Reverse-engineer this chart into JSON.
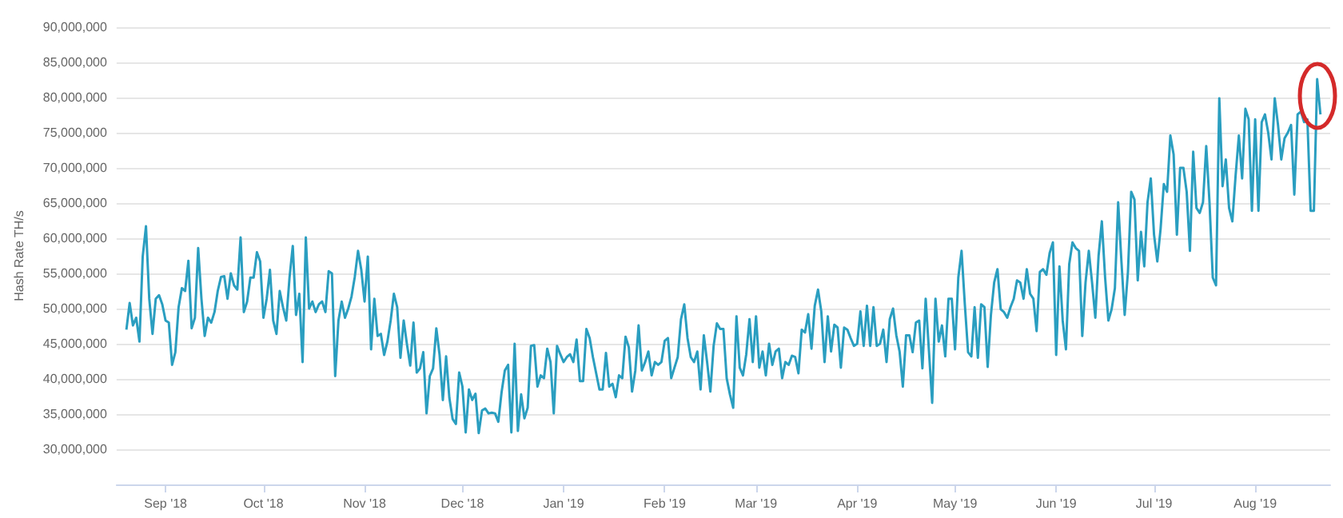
{
  "chart_data": {
    "type": "line",
    "ylabel": "Hash Rate TH/s",
    "color": "#2a9ec0",
    "marker": "none",
    "grid": "y",
    "xlim": [
      "2018-08-17",
      "2019-08-24"
    ],
    "xticks": [
      {
        "value": "2018-09-01",
        "label": "Sep '18"
      },
      {
        "value": "2018-10-01",
        "label": "Oct '18"
      },
      {
        "value": "2018-11-01",
        "label": "Nov '18"
      },
      {
        "value": "2018-12-01",
        "label": "Dec '18"
      },
      {
        "value": "2019-01-01",
        "label": "Jan '19"
      },
      {
        "value": "2019-02-01",
        "label": "Feb '19"
      },
      {
        "value": "2019-03-01",
        "label": "Mar '19"
      },
      {
        "value": "2019-04-01",
        "label": "Apr '19"
      },
      {
        "value": "2019-05-01",
        "label": "May '19"
      },
      {
        "value": "2019-06-01",
        "label": "Jun '19"
      },
      {
        "value": "2019-07-01",
        "label": "Jul '19"
      },
      {
        "value": "2019-08-01",
        "label": "Aug '19"
      }
    ],
    "ylim": [
      25000000,
      90000000
    ],
    "yticks": [
      {
        "value": 30000000,
        "label": "30,000,000"
      },
      {
        "value": 35000000,
        "label": "35,000,000"
      },
      {
        "value": 40000000,
        "label": "40,000,000"
      },
      {
        "value": 45000000,
        "label": "45,000,000"
      },
      {
        "value": 50000000,
        "label": "50,000,000"
      },
      {
        "value": 55000000,
        "label": "55,000,000"
      },
      {
        "value": 60000000,
        "label": "60,000,000"
      },
      {
        "value": 65000000,
        "label": "65,000,000"
      },
      {
        "value": 70000000,
        "label": "70,000,000"
      },
      {
        "value": 75000000,
        "label": "75,000,000"
      },
      {
        "value": 80000000,
        "label": "80,000,000"
      },
      {
        "value": 85000000,
        "label": "85,000,000"
      },
      {
        "value": 90000000,
        "label": "90,000,000"
      }
    ],
    "x": [
      "2018-08-20",
      "2018-08-21",
      "2018-08-22",
      "2018-08-23",
      "2018-08-24",
      "2018-08-25",
      "2018-08-26",
      "2018-08-27",
      "2018-08-28",
      "2018-08-29",
      "2018-08-30",
      "2018-08-31",
      "2018-09-01",
      "2018-09-02",
      "2018-09-03",
      "2018-09-04",
      "2018-09-05",
      "2018-09-06",
      "2018-09-07",
      "2018-09-08",
      "2018-09-09",
      "2018-09-10",
      "2018-09-11",
      "2018-09-12",
      "2018-09-13",
      "2018-09-14",
      "2018-09-15",
      "2018-09-16",
      "2018-09-17",
      "2018-09-18",
      "2018-09-19",
      "2018-09-20",
      "2018-09-21",
      "2018-09-22",
      "2018-09-23",
      "2018-09-24",
      "2018-09-25",
      "2018-09-26",
      "2018-09-27",
      "2018-09-28",
      "2018-09-29",
      "2018-09-30",
      "2018-10-01",
      "2018-10-02",
      "2018-10-03",
      "2018-10-04",
      "2018-10-05",
      "2018-10-06",
      "2018-10-07",
      "2018-10-08",
      "2018-10-09",
      "2018-10-10",
      "2018-10-11",
      "2018-10-12",
      "2018-10-13",
      "2018-10-14",
      "2018-10-15",
      "2018-10-16",
      "2018-10-17",
      "2018-10-18",
      "2018-10-19",
      "2018-10-20",
      "2018-10-21",
      "2018-10-22",
      "2018-10-23",
      "2018-10-24",
      "2018-10-25",
      "2018-10-26",
      "2018-10-27",
      "2018-10-28",
      "2018-10-29",
      "2018-10-30",
      "2018-10-31",
      "2018-11-01",
      "2018-11-02",
      "2018-11-03",
      "2018-11-04",
      "2018-11-05",
      "2018-11-06",
      "2018-11-07",
      "2018-11-08",
      "2018-11-09",
      "2018-11-10",
      "2018-11-11",
      "2018-11-12",
      "2018-11-13",
      "2018-11-14",
      "2018-11-15",
      "2018-11-16",
      "2018-11-17",
      "2018-11-18",
      "2018-11-19",
      "2018-11-20",
      "2018-11-21",
      "2018-11-22",
      "2018-11-23",
      "2018-11-24",
      "2018-11-25",
      "2018-11-26",
      "2018-11-27",
      "2018-11-28",
      "2018-11-29",
      "2018-11-30",
      "2018-12-01",
      "2018-12-02",
      "2018-12-03",
      "2018-12-04",
      "2018-12-05",
      "2018-12-06",
      "2018-12-07",
      "2018-12-08",
      "2018-12-09",
      "2018-12-10",
      "2018-12-11",
      "2018-12-12",
      "2018-12-13",
      "2018-12-14",
      "2018-12-15",
      "2018-12-16",
      "2018-12-17",
      "2018-12-18",
      "2018-12-19",
      "2018-12-20",
      "2018-12-21",
      "2018-12-22",
      "2018-12-23",
      "2018-12-24",
      "2018-12-25",
      "2018-12-26",
      "2018-12-27",
      "2018-12-28",
      "2018-12-29",
      "2018-12-30",
      "2018-12-31",
      "2019-01-01",
      "2019-01-02",
      "2019-01-03",
      "2019-01-04",
      "2019-01-05",
      "2019-01-06",
      "2019-01-07",
      "2019-01-08",
      "2019-01-09",
      "2019-01-10",
      "2019-01-11",
      "2019-01-12",
      "2019-01-13",
      "2019-01-14",
      "2019-01-15",
      "2019-01-16",
      "2019-01-17",
      "2019-01-18",
      "2019-01-19",
      "2019-01-20",
      "2019-01-21",
      "2019-01-22",
      "2019-01-23",
      "2019-01-24",
      "2019-01-25",
      "2019-01-26",
      "2019-01-27",
      "2019-01-28",
      "2019-01-29",
      "2019-01-30",
      "2019-01-31",
      "2019-02-01",
      "2019-02-02",
      "2019-02-03",
      "2019-02-04",
      "2019-02-05",
      "2019-02-06",
      "2019-02-07",
      "2019-02-08",
      "2019-02-09",
      "2019-02-10",
      "2019-02-11",
      "2019-02-12",
      "2019-02-13",
      "2019-02-14",
      "2019-02-15",
      "2019-02-16",
      "2019-02-17",
      "2019-02-18",
      "2019-02-19",
      "2019-02-20",
      "2019-02-21",
      "2019-02-22",
      "2019-02-23",
      "2019-02-24",
      "2019-02-25",
      "2019-02-26",
      "2019-02-27",
      "2019-02-28",
      "2019-03-01",
      "2019-03-02",
      "2019-03-03",
      "2019-03-04",
      "2019-03-05",
      "2019-03-06",
      "2019-03-07",
      "2019-03-08",
      "2019-03-09",
      "2019-03-10",
      "2019-03-11",
      "2019-03-12",
      "2019-03-13",
      "2019-03-14",
      "2019-03-15",
      "2019-03-16",
      "2019-03-17",
      "2019-03-18",
      "2019-03-19",
      "2019-03-20",
      "2019-03-21",
      "2019-03-22",
      "2019-03-23",
      "2019-03-24",
      "2019-03-25",
      "2019-03-26",
      "2019-03-27",
      "2019-03-28",
      "2019-03-29",
      "2019-03-30",
      "2019-03-31",
      "2019-04-01",
      "2019-04-02",
      "2019-04-03",
      "2019-04-04",
      "2019-04-05",
      "2019-04-06",
      "2019-04-07",
      "2019-04-08",
      "2019-04-09",
      "2019-04-10",
      "2019-04-11",
      "2019-04-12",
      "2019-04-13",
      "2019-04-14",
      "2019-04-15",
      "2019-04-16",
      "2019-04-17",
      "2019-04-18",
      "2019-04-19",
      "2019-04-20",
      "2019-04-21",
      "2019-04-22",
      "2019-04-24",
      "2019-04-25",
      "2019-04-26",
      "2019-04-27",
      "2019-04-28",
      "2019-04-29",
      "2019-04-30",
      "2019-05-01",
      "2019-05-02",
      "2019-05-03",
      "2019-05-04",
      "2019-05-05",
      "2019-05-06",
      "2019-05-07",
      "2019-05-08",
      "2019-05-09",
      "2019-05-10",
      "2019-05-11",
      "2019-05-12",
      "2019-05-13",
      "2019-05-14",
      "2019-05-15",
      "2019-05-16",
      "2019-05-17",
      "2019-05-18",
      "2019-05-19",
      "2019-05-20",
      "2019-05-21",
      "2019-05-22",
      "2019-05-23",
      "2019-05-24",
      "2019-05-25",
      "2019-05-26",
      "2019-05-27",
      "2019-05-28",
      "2019-05-29",
      "2019-05-30",
      "2019-05-31",
      "2019-06-01",
      "2019-06-02",
      "2019-06-03",
      "2019-06-04",
      "2019-06-05",
      "2019-06-06",
      "2019-06-07",
      "2019-06-08",
      "2019-06-09",
      "2019-06-10",
      "2019-06-11",
      "2019-06-12",
      "2019-06-13",
      "2019-06-14",
      "2019-06-15",
      "2019-06-16",
      "2019-06-17",
      "2019-06-18",
      "2019-06-19",
      "2019-06-20",
      "2019-06-21",
      "2019-06-22",
      "2019-06-23",
      "2019-06-24",
      "2019-06-25",
      "2019-06-26",
      "2019-06-27",
      "2019-06-28",
      "2019-06-29",
      "2019-06-30",
      "2019-07-01",
      "2019-07-02",
      "2019-07-03",
      "2019-07-04",
      "2019-07-05",
      "2019-07-06",
      "2019-07-07",
      "2019-07-08",
      "2019-07-09",
      "2019-07-10",
      "2019-07-11",
      "2019-07-12",
      "2019-07-13",
      "2019-07-14",
      "2019-07-15",
      "2019-07-16",
      "2019-07-17",
      "2019-07-18",
      "2019-07-19",
      "2019-07-20",
      "2019-07-21",
      "2019-07-22",
      "2019-07-23",
      "2019-07-24",
      "2019-07-25",
      "2019-07-26",
      "2019-07-27",
      "2019-07-28",
      "2019-07-29",
      "2019-07-30",
      "2019-07-31",
      "2019-08-01",
      "2019-08-02",
      "2019-08-03",
      "2019-08-04",
      "2019-08-05",
      "2019-08-06",
      "2019-08-07",
      "2019-08-08",
      "2019-08-09",
      "2019-08-10",
      "2019-08-11",
      "2019-08-12",
      "2019-08-13",
      "2019-08-14",
      "2019-08-15",
      "2019-08-16",
      "2019-08-17",
      "2019-08-18",
      "2019-08-19",
      "2019-08-20",
      "2019-08-21"
    ],
    "values": [
      47000000,
      50800000,
      47600000,
      48700000,
      45300000,
      57400000,
      61700000,
      51400000,
      46400000,
      51400000,
      51900000,
      50600000,
      48300000,
      48000000,
      42000000,
      43800000,
      50200000,
      52900000,
      52500000,
      56800000,
      47200000,
      48700000,
      58600000,
      51400000,
      46100000,
      48700000,
      48000000,
      49500000,
      52500000,
      54500000,
      54600000,
      51400000,
      55000000,
      53300000,
      52700000,
      60100000,
      49500000,
      51000000,
      54400000,
      54400000,
      58000000,
      56700000,
      48700000,
      51400000,
      55500000,
      48300000,
      46400000,
      52500000,
      50200000,
      48300000,
      54400000,
      58900000,
      49100000,
      52100000,
      42400000,
      60100000,
      50000000,
      51000000,
      49500000,
      50600000,
      51000000,
      49500000,
      55300000,
      55000000,
      40400000,
      48300000,
      51000000,
      48700000,
      50000000,
      51700000,
      54500000,
      58200000,
      55500000,
      51000000,
      57400000,
      44200000,
      51400000,
      46100000,
      46400000,
      43400000,
      45300000,
      48300000,
      52100000,
      50200000,
      43000000,
      48300000,
      44900000,
      41900000,
      48000000,
      40900000,
      41500000,
      43800000,
      35100000,
      40400000,
      41500000,
      47200000,
      43400000,
      37000000,
      43200000,
      37300000,
      34300000,
      33600000,
      40900000,
      38900000,
      32400000,
      38500000,
      37000000,
      37900000,
      32300000,
      35500000,
      35800000,
      35100000,
      35200000,
      35100000,
      33900000,
      38100000,
      41200000,
      42000000,
      32400000,
      45000000,
      32600000,
      37800000,
      34400000,
      35900000,
      44700000,
      44800000,
      38900000,
      40500000,
      40100000,
      44300000,
      42400000,
      35100000,
      44700000,
      43500000,
      42400000,
      43100000,
      43500000,
      42400000,
      45600000,
      39700000,
      39700000,
      47100000,
      45800000,
      43100000,
      40800000,
      38500000,
      38500000,
      43700000,
      38900000,
      39300000,
      37400000,
      40500000,
      40100000,
      46000000,
      44500000,
      38200000,
      41200000,
      47600000,
      41200000,
      42400000,
      43900000,
      40500000,
      42400000,
      42000000,
      42400000,
      45400000,
      45800000,
      40100000,
      41600000,
      43100000,
      48500000,
      50600000,
      45800000,
      43100000,
      42400000,
      43900000,
      38500000,
      46200000,
      42400000,
      38200000,
      44700000,
      47900000,
      47100000,
      47100000,
      40100000,
      37800000,
      35900000,
      48900000,
      41600000,
      40500000,
      43500000,
      48500000,
      42400000,
      48900000,
      41600000,
      43900000,
      40500000,
      45000000,
      42000000,
      43900000,
      44300000,
      40100000,
      42400000,
      42000000,
      43300000,
      43100000,
      40800000,
      47000000,
      46600000,
      49200000,
      44300000,
      50400000,
      52700000,
      49600000,
      42400000,
      48900000,
      43900000,
      47700000,
      47300000,
      41600000,
      47300000,
      47000000,
      45800000,
      44700000,
      45000000,
      49600000,
      44700000,
      50400000,
      44700000,
      50200000,
      44700000,
      45000000,
      47000000,
      42400000,
      48500000,
      50000000,
      46200000,
      43900000,
      38900000,
      46200000,
      46200000,
      43800000,
      48000000,
      48300000,
      41500000,
      51400000,
      36600000,
      51400000,
      45300000,
      47600000,
      43200000,
      51400000,
      51400000,
      44200000,
      54400000,
      58200000,
      50600000,
      43800000,
      43200000,
      50200000,
      43000000,
      50600000,
      50200000,
      41700000,
      49100000,
      53700000,
      55600000,
      49900000,
      49500000,
      48700000,
      50200000,
      51400000,
      54000000,
      53700000,
      51400000,
      55600000,
      52100000,
      51400000,
      46800000,
      55200000,
      55600000,
      54800000,
      57900000,
      59400000,
      43400000,
      56000000,
      48300000,
      44200000,
      56300000,
      59400000,
      58600000,
      58200000,
      46100000,
      53700000,
      58200000,
      53700000,
      48700000,
      57500000,
      62400000,
      54400000,
      48300000,
      49900000,
      52900000,
      65100000,
      56700000,
      49100000,
      55200000,
      66600000,
      65500000,
      54000000,
      60900000,
      56000000,
      65100000,
      68500000,
      60500000,
      56700000,
      61300000,
      67700000,
      66600000,
      74600000,
      71900000,
      60500000,
      70000000,
      70000000,
      66600000,
      58200000,
      72300000,
      64300000,
      63600000,
      65100000,
      73100000,
      65100000,
      54400000,
      53300000,
      79900000,
      67400000,
      71200000,
      64300000,
      62400000,
      68900000,
      74600000,
      68500000,
      78400000,
      76900000,
      63900000,
      76900000,
      63900000,
      76500000,
      77600000,
      75000000,
      71200000,
      79900000,
      76100000,
      71200000,
      74200000,
      75000000,
      76100000,
      66200000,
      77600000,
      78000000,
      76500000,
      76900000,
      63900000,
      63900000,
      82600000,
      77600000
    ]
  }
}
